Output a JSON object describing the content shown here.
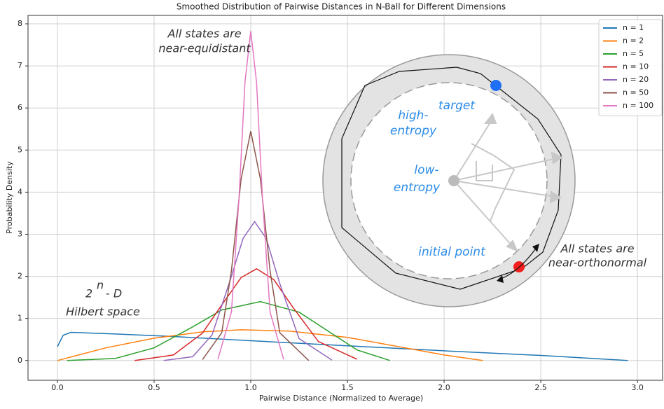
{
  "chart_data": {
    "type": "line",
    "title": "Smoothed Distribution of Pairwise Distances in N-Ball for Different Dimensions",
    "x_label": "Pairwise Distance (Normalized to Average)",
    "y_label": "Probability Density",
    "xlim": [
      -0.152,
      3.13
    ],
    "ylim": [
      -0.47,
      8.2
    ],
    "xticks": [
      {
        "value": 0,
        "label": "0.0"
      },
      0.5,
      {
        "value": 1,
        "label": "1.0"
      },
      1.5,
      {
        "value": 2,
        "label": "2.0"
      },
      2.5,
      {
        "value": 3,
        "label": "3.0"
      }
    ],
    "yticks": [
      0,
      1,
      2,
      3,
      4,
      5,
      6,
      7,
      8
    ],
    "grid": true,
    "legend": "upper right",
    "series": [
      {
        "name": "n = 1",
        "color": "#1f77b4",
        "x": [
          0,
          0.03,
          0.07,
          0.3,
          0.6,
          1.0,
          1.5,
          2.0,
          2.5,
          2.95
        ],
        "values": [
          0.33,
          0.6,
          0.67,
          0.63,
          0.57,
          0.47,
          0.35,
          0.23,
          0.12,
          0
        ]
      },
      {
        "name": "n = 2",
        "color": "#ff7f0e",
        "x": [
          0,
          0.25,
          0.5,
          0.75,
          0.95,
          1.2,
          1.5,
          1.8,
          2.0,
          2.2
        ],
        "values": [
          0,
          0.3,
          0.53,
          0.68,
          0.73,
          0.7,
          0.55,
          0.3,
          0.13,
          0
        ]
      },
      {
        "name": "n = 5",
        "color": "#2ca02c",
        "x": [
          0.05,
          0.3,
          0.5,
          0.7,
          0.85,
          1.05,
          1.25,
          1.4,
          1.55,
          1.72
        ],
        "values": [
          0,
          0.05,
          0.3,
          0.8,
          1.2,
          1.4,
          1.15,
          0.7,
          0.25,
          0
        ]
      },
      {
        "name": "n = 10",
        "color": "#d62728",
        "x": [
          0.4,
          0.6,
          0.75,
          0.85,
          0.95,
          1.03,
          1.12,
          1.22,
          1.35,
          1.55
        ],
        "values": [
          0,
          0.13,
          0.65,
          1.32,
          1.97,
          2.18,
          1.92,
          1.25,
          0.45,
          0.03
        ]
      },
      {
        "name": "n = 20",
        "color": "#9467bd",
        "x": [
          0.55,
          0.7,
          0.8,
          0.9,
          0.96,
          1.02,
          1.08,
          1.15,
          1.25,
          1.42
        ],
        "values": [
          0,
          0.09,
          0.61,
          2.0,
          2.9,
          3.3,
          2.9,
          1.83,
          0.52,
          0.01
        ]
      },
      {
        "name": "n = 50",
        "color": "#8c564b",
        "x": [
          0.75,
          0.85,
          0.9,
          0.95,
          1.0,
          1.05,
          1.1,
          1.15,
          1.3
        ],
        "values": [
          0.02,
          0.66,
          2.13,
          4.31,
          5.45,
          4.31,
          2.13,
          0.66,
          0
        ]
      },
      {
        "name": "n = 100",
        "color": "#e377c2",
        "x": [
          0.83,
          0.9,
          0.94,
          0.97,
          1.0,
          1.03,
          1.06,
          1.1,
          1.17
        ],
        "values": [
          0.03,
          1.15,
          3.9,
          6.6,
          7.83,
          6.6,
          3.9,
          1.15,
          0.03
        ]
      }
    ],
    "annotations": [
      "All states are",
      "near-equidistant",
      "2",
      "n",
      "- D",
      "Hilbert space",
      "target",
      "high-",
      "entropy",
      "low-",
      "entropy",
      "initial point",
      "All states are",
      "near-orthonormal"
    ]
  }
}
